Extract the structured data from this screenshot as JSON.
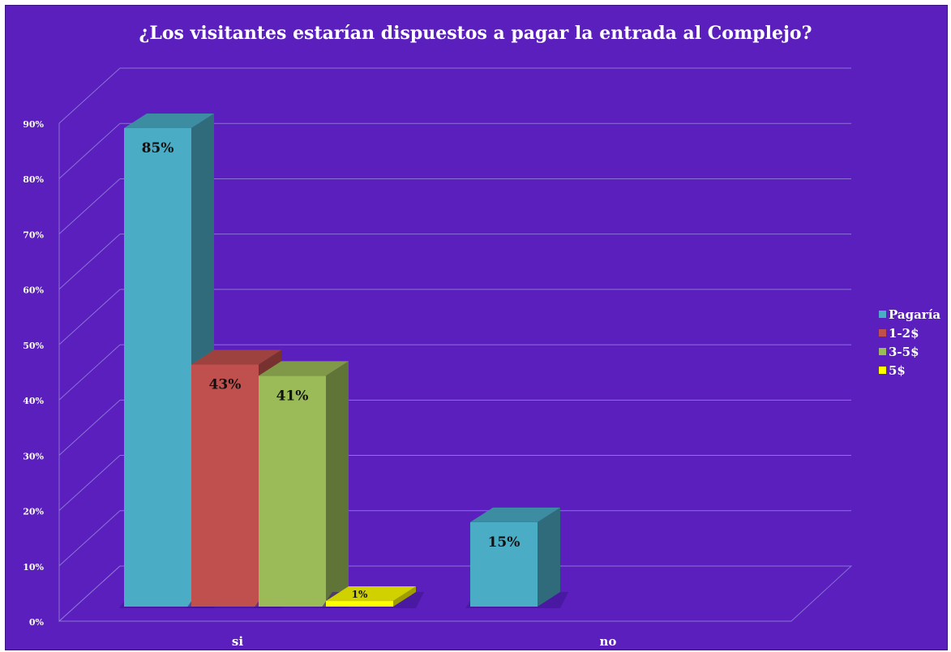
{
  "chart_data": {
    "type": "bar",
    "title": "¿Los visitantes estarían dispuestos a pagar la entrada al Complejo?",
    "categories": [
      "si",
      "no"
    ],
    "y_ticks": [
      "0%",
      "10%",
      "20%",
      "30%",
      "40%",
      "50%",
      "60%",
      "70%",
      "80%",
      "90%"
    ],
    "ylim": [
      0,
      90
    ],
    "grid": true,
    "legend_position": "right",
    "series": [
      {
        "name": "Pagaría",
        "color": "#4bacc6",
        "values": [
          85,
          15
        ],
        "labels": [
          "85%",
          "15%"
        ]
      },
      {
        "name": "1-2$",
        "color": "#c0504d",
        "values": [
          43,
          null
        ],
        "labels": [
          "43%",
          ""
        ]
      },
      {
        "name": "3-5$",
        "color": "#9bbb59",
        "values": [
          41,
          null
        ],
        "labels": [
          "41%",
          ""
        ]
      },
      {
        "name": "5$",
        "color": "#ffff00",
        "values": [
          1,
          null
        ],
        "labels": [
          "1%",
          ""
        ]
      }
    ]
  }
}
